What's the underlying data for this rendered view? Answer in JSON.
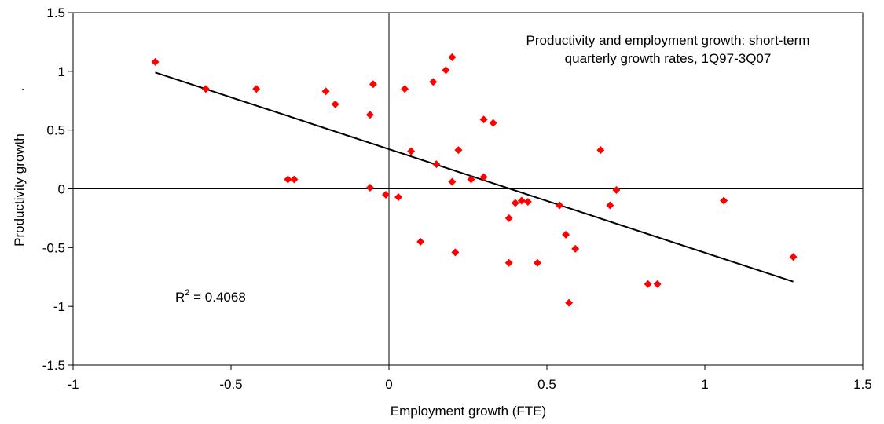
{
  "chart_data": {
    "type": "scatter",
    "title_lines": [
      "Productivity and employment growth: short-term",
      "quarterly growth rates, 1Q97-3Q07"
    ],
    "xlabel": "Employment growth (FTE)",
    "ylabel": "Productivity growth",
    "ylabel_marker": ".",
    "xlim": [
      -1,
      1.5
    ],
    "ylim": [
      -1.5,
      1.5
    ],
    "x_ticks": [
      -1,
      -0.5,
      0,
      0.5,
      1,
      1.5
    ],
    "x_tick_labels": [
      "-1",
      "-0.5",
      "0",
      "0.5",
      "1",
      "1.5"
    ],
    "y_ticks": [
      -1.5,
      -1,
      -0.5,
      0,
      0.5,
      1,
      1.5
    ],
    "y_tick_labels": [
      "-1.5",
      "-1",
      "-0.5",
      "0",
      "0.5",
      "1",
      "1.5"
    ],
    "grid": false,
    "legend": "none",
    "marker_color": "#ff0000",
    "trendline_color": "#000000",
    "r_squared_prefix": "R",
    "r_squared_sup": "2",
    "r_squared_value": " = 0.4068",
    "trendline": {
      "x": [
        -0.74,
        1.28
      ],
      "y": [
        0.99,
        -0.79
      ]
    },
    "points": [
      {
        "x": -0.74,
        "y": 1.08
      },
      {
        "x": -0.58,
        "y": 0.85
      },
      {
        "x": -0.42,
        "y": 0.85
      },
      {
        "x": -0.2,
        "y": 0.83
      },
      {
        "x": -0.17,
        "y": 0.72
      },
      {
        "x": -0.05,
        "y": 0.89
      },
      {
        "x": -0.06,
        "y": 0.63
      },
      {
        "x": -0.32,
        "y": 0.08
      },
      {
        "x": -0.3,
        "y": 0.08
      },
      {
        "x": -0.06,
        "y": 0.01
      },
      {
        "x": -0.01,
        "y": -0.05
      },
      {
        "x": 0.03,
        "y": -0.07
      },
      {
        "x": 0.05,
        "y": 0.85
      },
      {
        "x": 0.07,
        "y": 0.32
      },
      {
        "x": 0.1,
        "y": -0.45
      },
      {
        "x": 0.14,
        "y": 0.91
      },
      {
        "x": 0.15,
        "y": 0.21
      },
      {
        "x": 0.18,
        "y": 1.01
      },
      {
        "x": 0.2,
        "y": 1.12
      },
      {
        "x": 0.2,
        "y": 0.06
      },
      {
        "x": 0.21,
        "y": -0.54
      },
      {
        "x": 0.22,
        "y": 0.33
      },
      {
        "x": 0.26,
        "y": 0.08
      },
      {
        "x": 0.3,
        "y": 0.59
      },
      {
        "x": 0.3,
        "y": 0.1
      },
      {
        "x": 0.33,
        "y": 0.56
      },
      {
        "x": 0.38,
        "y": -0.25
      },
      {
        "x": 0.38,
        "y": -0.63
      },
      {
        "x": 0.4,
        "y": -0.12
      },
      {
        "x": 0.42,
        "y": -0.1
      },
      {
        "x": 0.44,
        "y": -0.11
      },
      {
        "x": 0.47,
        "y": -0.63
      },
      {
        "x": 0.54,
        "y": -0.14
      },
      {
        "x": 0.56,
        "y": -0.39
      },
      {
        "x": 0.57,
        "y": -0.97
      },
      {
        "x": 0.59,
        "y": -0.51
      },
      {
        "x": 0.67,
        "y": 0.33
      },
      {
        "x": 0.7,
        "y": -0.14
      },
      {
        "x": 0.72,
        "y": -0.01
      },
      {
        "x": 0.82,
        "y": -0.81
      },
      {
        "x": 0.85,
        "y": -0.81
      },
      {
        "x": 1.06,
        "y": -0.1
      },
      {
        "x": 1.28,
        "y": -0.58
      }
    ]
  }
}
